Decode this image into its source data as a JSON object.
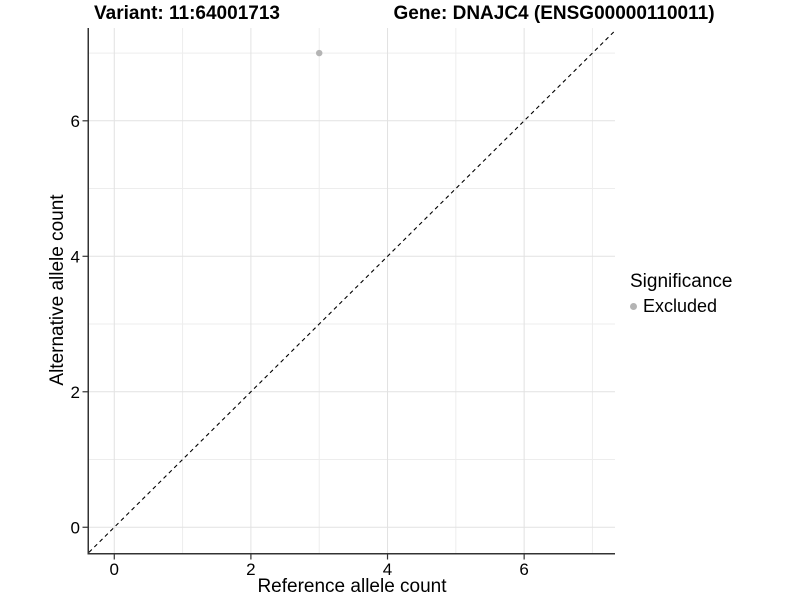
{
  "chart_data": {
    "type": "scatter",
    "title_variant": "Variant: 11:64001713",
    "title_gene": "Gene: DNAJC4 (ENSG00000110011)",
    "xlabel": "Reference allele count",
    "ylabel": "Alternative allele count",
    "xlim": [
      -0.37,
      7.33
    ],
    "ylim": [
      -0.38,
      7.37
    ],
    "x_major_ticks": [
      0,
      2,
      4,
      6
    ],
    "y_major_ticks": [
      0,
      2,
      4,
      6
    ],
    "x_minor_ticks": [
      1,
      3,
      5,
      7
    ],
    "y_minor_ticks": [
      1,
      3,
      5,
      7
    ],
    "grid": true,
    "reference_line": {
      "type": "identity",
      "slope": 1,
      "intercept": 0,
      "style": "dashed"
    },
    "series": [
      {
        "name": "Excluded",
        "color": "#b4b4b4",
        "points": [
          [
            3,
            7
          ]
        ]
      }
    ],
    "legend": {
      "title": "Significance",
      "position": "right",
      "entries": [
        {
          "label": "Excluded",
          "color": "#b4b4b4"
        }
      ]
    },
    "colors": {
      "background": "#ffffff",
      "grid_major": "#e2e2e2",
      "grid_minor": "#ededed",
      "axis_line": "#333333",
      "reference_line": "#000000",
      "point": "#b4b4b4",
      "text": "#000000"
    }
  }
}
